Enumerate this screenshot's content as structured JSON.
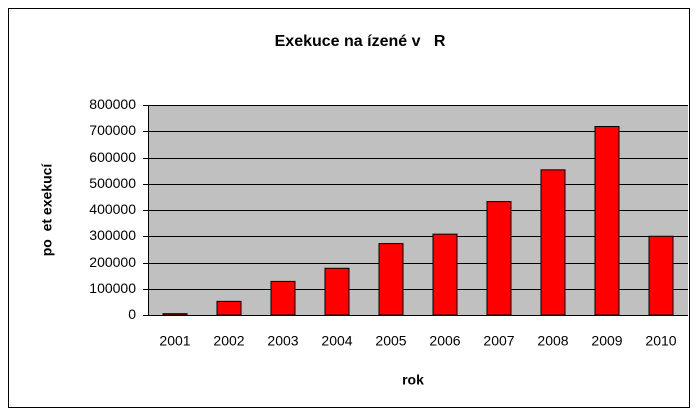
{
  "chart_data": {
    "type": "bar",
    "title": "Exekuce na ízené v   R",
    "x_label": "rok",
    "y_label": "po  et exekucí",
    "categories": [
      "2001",
      "2002",
      "2003",
      "2004",
      "2005",
      "2006",
      "2007",
      "2008",
      "2009",
      "2010"
    ],
    "values": [
      5000,
      52000,
      128000,
      178000,
      272000,
      308000,
      432000,
      553000,
      718000,
      300000
    ],
    "color": "#ff0000",
    "ylim": [
      0,
      800000
    ],
    "yticks": [
      0,
      100000,
      200000,
      300000,
      400000,
      500000,
      600000,
      700000,
      800000
    ],
    "grid": true
  }
}
